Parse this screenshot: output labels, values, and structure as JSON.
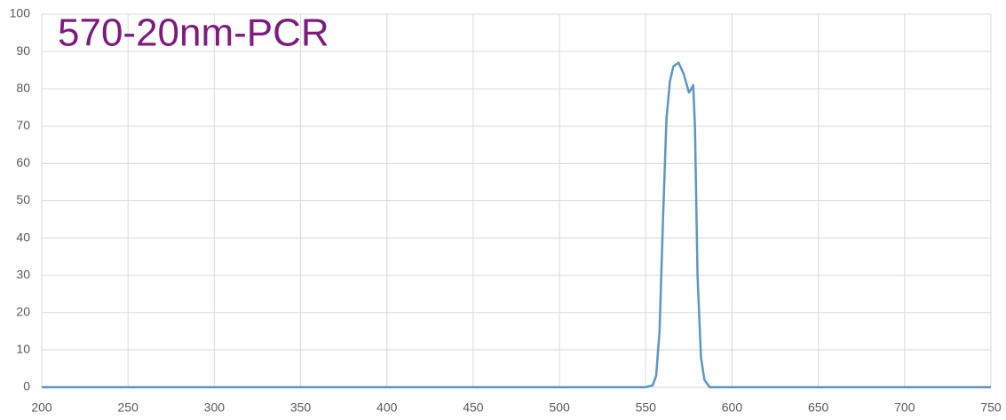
{
  "chart_data": {
    "type": "line",
    "title": "570-20nm-PCR",
    "x": [
      200,
      550,
      554,
      556,
      558,
      560,
      562,
      564,
      566,
      569,
      572,
      575,
      576.5,
      577.5,
      578.5,
      580,
      582,
      584,
      587,
      750
    ],
    "values": [
      0,
      0,
      0.5,
      3,
      15,
      45,
      72,
      82,
      86,
      87,
      84,
      79,
      80,
      81,
      70,
      30,
      8,
      2,
      0,
      0
    ],
    "color": "#5b96c8",
    "xlim": [
      200,
      750
    ],
    "xticks": [
      200,
      250,
      300,
      350,
      400,
      450,
      500,
      550,
      600,
      650,
      700,
      750
    ],
    "ylim": [
      0,
      100
    ],
    "yticks": [
      0,
      10,
      20,
      30,
      40,
      50,
      60,
      70,
      80,
      90,
      100
    ],
    "grid": true
  }
}
